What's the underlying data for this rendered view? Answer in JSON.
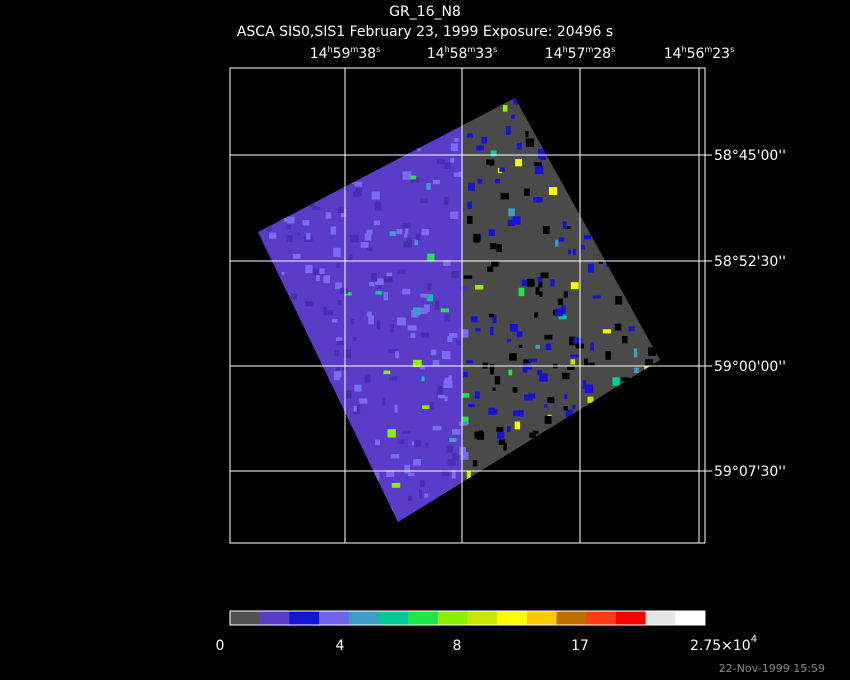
{
  "header": {
    "title": "GR_16_N8",
    "subtitle": "ASCA SIS0,SIS1 February 23, 1999 Exposure: 20496 s"
  },
  "ra_labels": [
    [
      "14",
      "h",
      "59",
      "m",
      "38",
      "s"
    ],
    [
      "14",
      "h",
      "58",
      "m",
      "33",
      "s"
    ],
    [
      "14",
      "h",
      "57",
      "m",
      "28",
      "s"
    ],
    [
      "14",
      "h",
      "56",
      "m",
      "23",
      "s"
    ]
  ],
  "dec_labels": [
    "58°45'00''",
    "58°52'30''",
    "59°00'00''",
    "59°07'30''"
  ],
  "colorbar": {
    "colors": [
      "#505050",
      "#5a3cc8",
      "#1414d2",
      "#6e64f0",
      "#3c9ec8",
      "#00c896",
      "#1ee646",
      "#8cf000",
      "#c8e600",
      "#ffff00",
      "#ffc800",
      "#c07000",
      "#ff3c14",
      "#ff0000",
      "#e6e6e6",
      "#ffffff"
    ],
    "labels": [
      "0",
      "4",
      "8",
      "17"
    ],
    "max_label": {
      "base": "2.75×10",
      "exponent": "4"
    }
  },
  "timestamp": "22-Nov-1999 15:59"
}
